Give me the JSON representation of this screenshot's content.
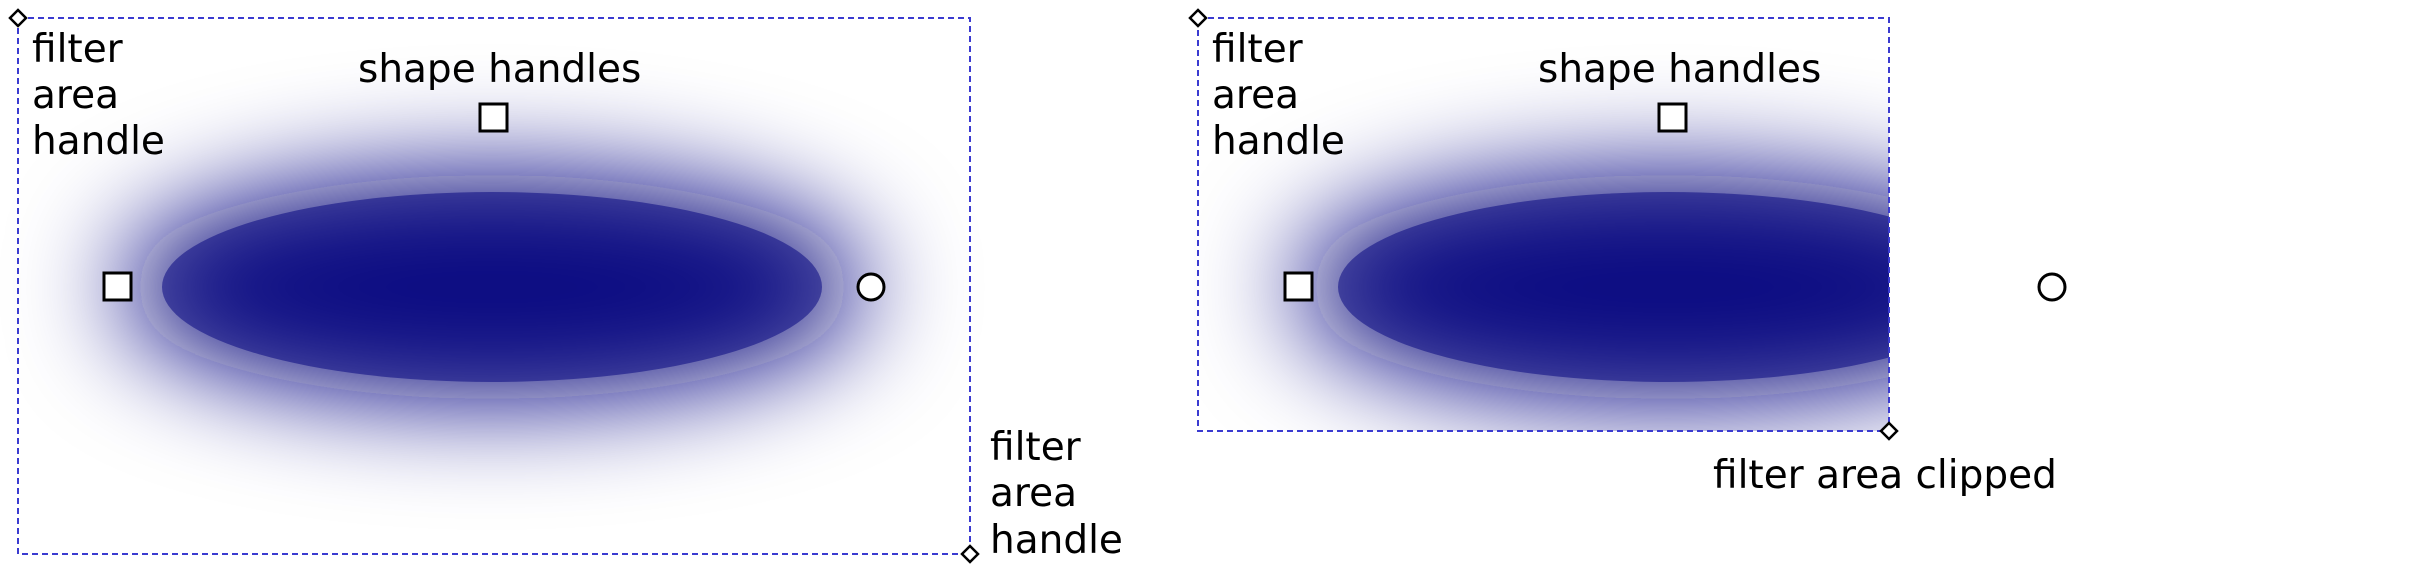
{
  "colors": {
    "blur_fill": "#0a0a82",
    "filter_area_border": "#3b3bd0",
    "handle_stroke": "#000000",
    "handle_fill": "#ffffff",
    "background": "#ffffff"
  },
  "left_panel": {
    "filter_area_handle_label": [
      "filter",
      "area",
      "handle"
    ],
    "shape_handles_label": "shape handles",
    "filter_area_handle_label_corner": [
      "filter",
      "area",
      "handle"
    ]
  },
  "right_panel": {
    "filter_area_handle_label": [
      "filter",
      "area",
      "handle"
    ],
    "shape_handles_label": "shape handles",
    "clipped_label": "filter area clipped"
  },
  "icons": {
    "shape_handle": "square-handle-icon",
    "radius_handle": "circle-handle-icon",
    "filter_area_handle": "diamond-handle-icon"
  }
}
